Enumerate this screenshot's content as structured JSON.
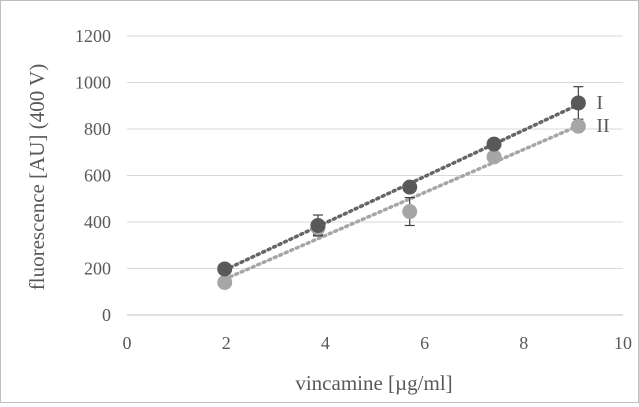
{
  "chart_data": {
    "type": "scatter",
    "title": "",
    "xlabel": "vincamine [µg/ml]",
    "ylabel": "fluorescence [AU] (400 V)",
    "xlim": [
      0,
      10
    ],
    "ylim": [
      0,
      1200
    ],
    "x_ticks": [
      "0",
      "2",
      "4",
      "6",
      "8",
      "10"
    ],
    "y_ticks": [
      "0",
      "200",
      "400",
      "600",
      "800",
      "1000",
      "1200"
    ],
    "grid": "horizontal",
    "trendline": "linear, dotted",
    "series": [
      {
        "name": "I",
        "color": "#595959",
        "trend_color": "#666666",
        "x": [
          1.97,
          3.85,
          5.7,
          7.4,
          9.1
        ],
        "y": [
          198,
          385,
          550,
          735,
          912
        ],
        "error": [
          15,
          45,
          15,
          15,
          70
        ]
      },
      {
        "name": "II",
        "color": "#a6a6a6",
        "trend_color": "#a6a6a6",
        "x": [
          1.97,
          3.85,
          5.7,
          7.4,
          9.1
        ],
        "y": [
          140,
          375,
          445,
          680,
          812
        ],
        "error": [
          10,
          30,
          60,
          15,
          15
        ]
      }
    ]
  }
}
